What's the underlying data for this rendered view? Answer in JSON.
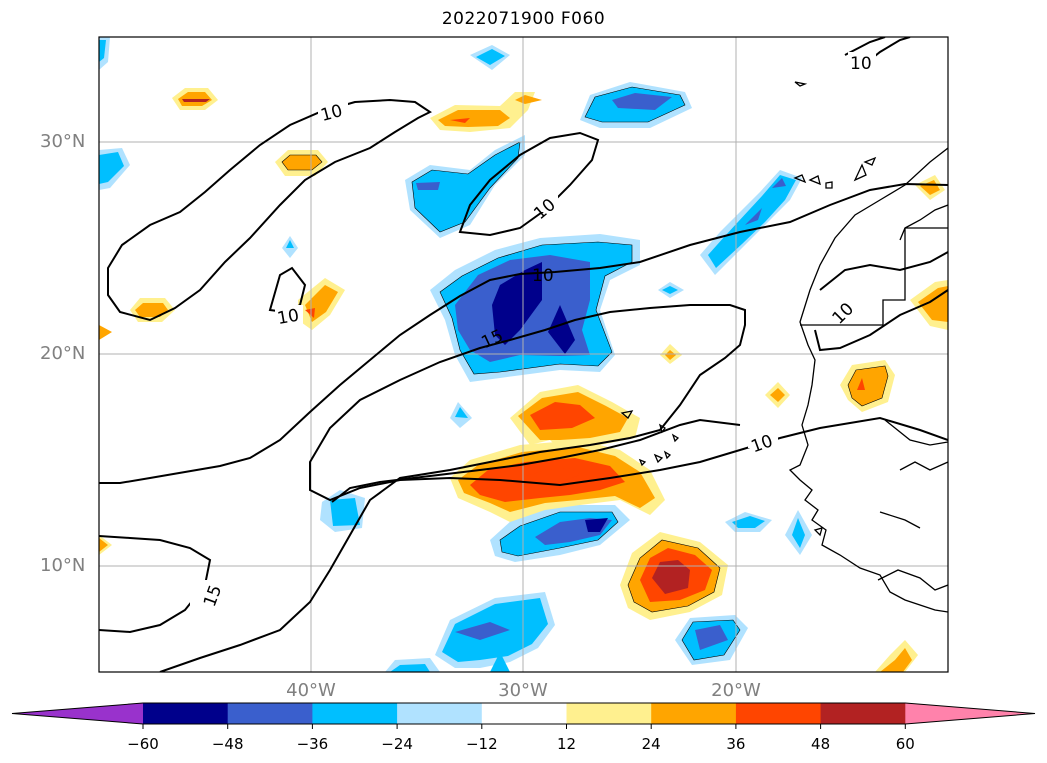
{
  "title": "2022071900 F060",
  "map": {
    "lat_labels": [
      "30°N",
      "20°N",
      "10°N"
    ],
    "lon_labels": [
      "40°W",
      "30°W",
      "20°W"
    ],
    "contour_labels": [
      "10",
      "10",
      "10",
      "10",
      "10",
      "10",
      "15",
      "15",
      "10"
    ]
  },
  "colorbar": {
    "ticks": [
      "−60",
      "−48",
      "−36",
      "−24",
      "−12",
      "12",
      "24",
      "36",
      "48",
      "60"
    ],
    "colors": [
      "#9932cc",
      "#00008b",
      "#3a5fcd",
      "#00bfff",
      "#b0e2ff",
      "#ffffff",
      "#fff08f",
      "#ffa500",
      "#ff4500",
      "#b22222",
      "#ff82ab"
    ]
  }
}
